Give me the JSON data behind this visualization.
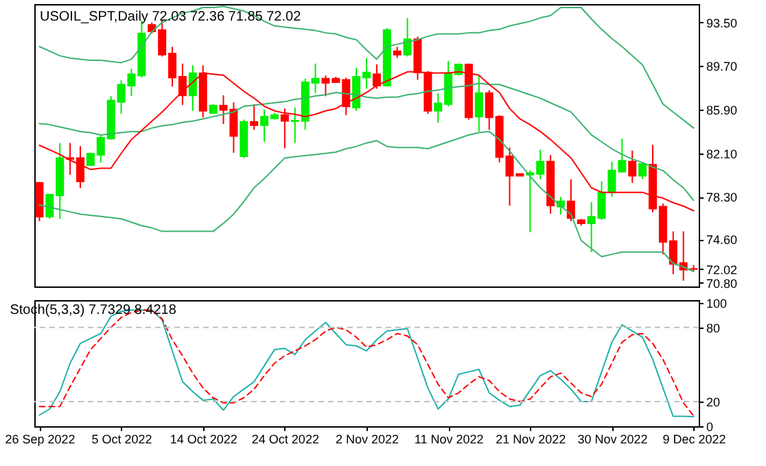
{
  "chart_data": [
    {
      "type": "candlestick",
      "title": "USOIL_SPT,Daily  72.03 72.36 71.85 72.02",
      "tick_labels": "y",
      "categories": [
        null,
        null,
        null,
        null,
        null,
        null,
        null,
        null,
        null,
        null,
        null,
        null,
        null,
        null,
        null,
        null,
        null,
        null,
        null,
        null,
        null,
        null,
        null,
        null,
        null,
        null,
        null,
        null,
        null,
        null,
        null,
        null,
        null,
        null,
        null,
        null,
        null,
        null,
        null,
        null,
        null,
        null,
        null,
        null,
        null,
        null,
        null,
        null,
        null,
        null,
        null,
        null,
        null,
        null,
        null,
        null,
        null,
        null,
        null,
        null,
        null,
        null,
        null,
        null,
        null
      ],
      "ylim": [
        70.5,
        95.1
      ],
      "yticks": [
        {
          "value": 70.8,
          "label": "70.80"
        },
        {
          "value": 72.02,
          "label": "72.02"
        },
        {
          "value": 74.6,
          "label": "74.60"
        },
        {
          "value": 78.3,
          "label": "78.30"
        },
        {
          "value": 82.1,
          "label": "82.10"
        },
        {
          "value": 85.9,
          "label": "85.90"
        },
        {
          "value": 89.7,
          "label": "89.70"
        },
        {
          "value": 93.5,
          "label": "93.50"
        }
      ],
      "ohlc": [
        [
          79.53,
          79.6,
          76.19,
          76.57
        ],
        [
          76.57,
          78.5,
          76.4,
          78.5
        ],
        [
          78.42,
          83.0,
          76.38,
          81.69
        ],
        [
          81.69,
          83.0,
          80.23,
          81.6
        ],
        [
          81.69,
          82.73,
          79.07,
          79.65
        ],
        [
          81.07,
          82.15,
          80.99,
          82.07
        ],
        [
          81.96,
          83.69,
          81.3,
          83.46
        ],
        [
          83.38,
          87.08,
          83.3,
          86.69
        ],
        [
          86.58,
          88.46,
          85.54,
          88.08
        ],
        [
          88.0,
          89.46,
          87.08,
          89.0
        ],
        [
          88.88,
          93.7,
          88.7,
          92.54
        ],
        [
          93.3,
          93.5,
          92.54,
          92.73
        ],
        [
          92.85,
          93.7,
          90.54,
          90.69
        ],
        [
          90.8,
          91.38,
          87.92,
          88.69
        ],
        [
          88.77,
          89.92,
          86.31,
          87.15
        ],
        [
          87.15,
          89.77,
          85.8,
          89.08
        ],
        [
          89.08,
          89.77,
          85.23,
          85.8
        ],
        [
          85.61,
          86.38,
          85.54,
          86.27
        ],
        [
          86.27,
          87.15,
          84.65,
          85.88
        ],
        [
          85.92,
          86.54,
          82.15,
          83.61
        ],
        [
          81.84,
          85.04,
          81.69,
          84.84
        ],
        [
          84.84,
          86.38,
          84.15,
          84.54
        ],
        [
          84.54,
          85.92,
          83.11,
          85.3
        ],
        [
          85.15,
          85.61,
          85.04,
          85.42
        ],
        [
          85.42,
          86.0,
          82.54,
          84.92
        ],
        [
          84.9,
          86.08,
          83.0,
          84.95
        ],
        [
          84.92,
          88.61,
          84.15,
          88.3
        ],
        [
          88.23,
          89.92,
          87.35,
          88.61
        ],
        [
          88.61,
          88.88,
          87.08,
          88.23
        ],
        [
          88.61,
          88.77,
          88.23,
          88.3
        ],
        [
          88.5,
          88.69,
          85.42,
          86.19
        ],
        [
          86.08,
          89.54,
          85.8,
          88.77
        ],
        [
          88.69,
          90.42,
          87.73,
          89.15
        ],
        [
          89.0,
          89.85,
          87.73,
          88.0
        ],
        [
          88.0,
          93.0,
          87.92,
          92.85
        ],
        [
          91.0,
          91.38,
          90.42,
          90.69
        ],
        [
          90.69,
          93.88,
          90.54,
          92.04
        ],
        [
          92.04,
          92.27,
          88.5,
          89.15
        ],
        [
          89.15,
          89.27,
          85.54,
          85.8
        ],
        [
          85.8,
          87.35,
          84.77,
          86.46
        ],
        [
          86.38,
          90.15,
          86.19,
          89.08
        ],
        [
          89.0,
          89.92,
          88.88,
          89.85
        ],
        [
          89.85,
          89.92,
          85.04,
          85.23
        ],
        [
          85.3,
          88.88,
          84.0,
          87.35
        ],
        [
          87.35,
          87.61,
          84.15,
          85.23
        ],
        [
          85.3,
          85.42,
          81.3,
          81.77
        ],
        [
          81.84,
          82.6,
          77.54,
          80.15
        ],
        [
          80.3,
          80.35,
          80.1,
          80.15
        ],
        [
          80.23,
          80.61,
          75.23,
          80.38
        ],
        [
          80.3,
          82.42,
          79.84,
          81.38
        ],
        [
          81.38,
          81.96,
          76.84,
          77.54
        ],
        [
          77.46,
          78.3,
          76.77,
          77.92
        ],
        [
          77.92,
          79.84,
          76.19,
          76.46
        ],
        [
          76.27,
          76.38,
          75.8,
          76.0
        ],
        [
          76.0,
          77.84,
          73.5,
          76.57
        ],
        [
          76.46,
          79.65,
          76.3,
          78.69
        ],
        [
          78.69,
          81.38,
          78.3,
          80.61
        ],
        [
          80.5,
          83.38,
          80.42,
          81.46
        ],
        [
          81.38,
          82.34,
          79.53,
          80.15
        ],
        [
          80.15,
          81.3,
          79.84,
          81.19
        ],
        [
          81.11,
          82.84,
          76.96,
          77.27
        ],
        [
          77.46,
          77.73,
          73.3,
          74.38
        ],
        [
          74.46,
          75.3,
          71.57,
          72.46
        ],
        [
          72.54,
          75.3,
          71.0,
          71.96
        ],
        [
          72.03,
          72.36,
          71.85,
          72.02
        ]
      ],
      "colors": [
        "#ff0000",
        "#00ee00",
        "#00ee00",
        "#ff0000",
        "#ff0000",
        "#00ee00",
        "#00ee00",
        "#00ee00",
        "#00ee00",
        "#00ee00",
        "#00ee00",
        "#ff0000",
        "#ff0000",
        "#ff0000",
        "#ff0000",
        "#00ee00",
        "#ff0000",
        "#00ee00",
        "#ff0000",
        "#ff0000",
        "#00ee00",
        "#ff0000",
        "#00ee00",
        "#00ee00",
        "#ff0000",
        "#00ee00",
        "#00ee00",
        "#00ee00",
        "#ff0000",
        "#ff0000",
        "#ff0000",
        "#00ee00",
        "#00ee00",
        "#ff0000",
        "#00ee00",
        "#ff0000",
        "#00ee00",
        "#ff0000",
        "#ff0000",
        "#00ee00",
        "#00ee00",
        "#00ee00",
        "#ff0000",
        "#00ee00",
        "#ff0000",
        "#ff0000",
        "#ff0000",
        "#ff0000",
        "#00ee00",
        "#00ee00",
        "#ff0000",
        "#00ee00",
        "#ff0000",
        "#ff0000",
        "#00ee00",
        "#00ee00",
        "#00ee00",
        "#00ee00",
        "#ff0000",
        "#00ee00",
        "#ff0000",
        "#ff0000",
        "#ff0000",
        "#ff0000",
        "#ff0000"
      ],
      "series": [
        {
          "type": "line",
          "color": "#3cb371",
          "values": [
            91.4,
            91.0,
            90.6,
            90.4,
            90.3,
            90.2,
            90.2,
            90.1,
            90.0,
            90.3,
            91.4,
            92.7,
            93.5,
            93.9,
            94.3,
            94.5,
            94.8,
            94.8,
            94.9,
            94.7,
            94.5,
            94.1,
            93.6,
            93.2,
            93.1,
            93.0,
            92.9,
            92.8,
            92.6,
            92.5,
            92.2,
            92.0,
            91.1,
            90.3,
            91.4,
            91.6,
            91.8,
            92.0,
            92.3,
            92.5,
            92.5,
            92.5,
            92.6,
            92.6,
            92.8,
            92.9,
            93.2,
            93.4,
            93.6,
            93.9,
            94.1,
            94.8,
            94.8,
            94.8,
            93.8,
            92.9,
            92.1,
            91.4,
            90.6,
            89.8,
            88.1,
            86.4,
            85.7,
            85.0,
            84.3
          ]
        },
        {
          "type": "line",
          "color": "#3cb371",
          "values": [
            84.7,
            84.6,
            84.4,
            84.2,
            84.0,
            83.9,
            83.7,
            83.8,
            83.9,
            84.0,
            84.0,
            84.3,
            84.5,
            84.6,
            84.8,
            84.9,
            85.1,
            85.3,
            85.5,
            85.7,
            86.2,
            86.3,
            86.4,
            86.5,
            86.6,
            86.8,
            86.9,
            87.1,
            87.2,
            87.4,
            87.3,
            87.2,
            87.0,
            86.9,
            87.0,
            87.0,
            87.2,
            87.3,
            87.5,
            87.6,
            87.8,
            87.9,
            88.0,
            88.2,
            88.1,
            88.1,
            87.8,
            87.5,
            87.2,
            86.9,
            86.5,
            86.1,
            85.7,
            84.7,
            83.7,
            83.1,
            82.5,
            82.0,
            81.6,
            81.3,
            80.9,
            80.6,
            79.8,
            79.1,
            78.0
          ]
        },
        {
          "type": "line",
          "color": "#3cb371",
          "values": [
            77.6,
            77.4,
            77.2,
            77.0,
            76.8,
            76.7,
            76.6,
            76.5,
            76.4,
            76.1,
            75.8,
            75.6,
            75.3,
            75.3,
            75.3,
            75.3,
            75.3,
            75.3,
            76.0,
            76.8,
            77.9,
            79.1,
            79.9,
            80.8,
            81.7,
            81.8,
            81.9,
            82.0,
            82.1,
            82.2,
            82.5,
            82.7,
            83.0,
            83.2,
            82.7,
            82.6,
            82.6,
            82.6,
            82.5,
            82.8,
            83.1,
            83.4,
            83.7,
            83.9,
            84.0,
            83.3,
            82.3,
            81.2,
            80.1,
            79.1,
            78.3,
            77.5,
            76.8,
            74.5,
            73.8,
            73.1,
            73.3,
            73.5,
            73.5,
            73.5,
            73.5,
            73.5,
            72.5,
            72.2,
            71.8
          ]
        },
        {
          "type": "line",
          "color": "#ff0000",
          "values": [
            82.8,
            82.4,
            82.0,
            81.5,
            81.1,
            80.7,
            80.8,
            80.8,
            82.1,
            83.3,
            84.1,
            84.9,
            85.7,
            86.6,
            87.5,
            88.3,
            89.1,
            89.0,
            88.9,
            88.2,
            87.5,
            86.9,
            86.2,
            85.8,
            85.6,
            85.5,
            85.3,
            85.5,
            85.8,
            86.0,
            86.5,
            86.9,
            87.4,
            88.0,
            88.4,
            88.8,
            89.2,
            89.2,
            89.1,
            89.1,
            89.1,
            89.2,
            89.1,
            88.9,
            88.1,
            87.4,
            86.0,
            85.1,
            84.6,
            84.0,
            83.3,
            82.5,
            81.7,
            80.4,
            79.1,
            78.7,
            78.7,
            78.7,
            78.7,
            78.7,
            78.4,
            78.2,
            77.8,
            77.5,
            77.1
          ]
        }
      ]
    },
    {
      "type": "line",
      "title": "Stoch(5,3,3) 7.7329 8.4218",
      "categories": [
        "26 Sep 2022",
        null,
        null,
        null,
        null,
        null,
        null,
        null,
        "5 Oct 2022",
        null,
        null,
        null,
        null,
        null,
        null,
        null,
        "14 Oct 2022",
        null,
        null,
        null,
        null,
        null,
        null,
        null,
        "24 Oct 2022",
        null,
        null,
        null,
        null,
        null,
        null,
        null,
        "2 Nov 2022",
        null,
        null,
        null,
        null,
        null,
        null,
        null,
        "11 Nov 2022",
        null,
        null,
        null,
        null,
        null,
        null,
        null,
        "21 Nov 2022",
        null,
        null,
        null,
        null,
        null,
        null,
        null,
        "30 Nov 2022",
        null,
        null,
        null,
        null,
        null,
        null,
        null,
        "9 Dec 2022"
      ],
      "ylim": [
        0,
        102
      ],
      "yticks": [
        0,
        20,
        80,
        100
      ],
      "ref_lines": [
        {
          "axis": "y",
          "value": 80,
          "color": "#c0c0c0",
          "line_style": "dashed"
        },
        {
          "axis": "y",
          "value": 20,
          "color": "#c0c0c0",
          "line_style": "dashed"
        }
      ],
      "series": [
        {
          "type": "line",
          "color": "#20b2aa",
          "values": [
            9,
            14,
            28,
            51,
            67,
            71,
            75,
            89,
            93,
            94,
            94,
            94,
            86,
            61,
            36,
            28,
            21,
            22,
            13,
            24,
            30,
            36,
            49,
            62,
            63,
            58,
            70,
            77,
            84,
            75,
            66,
            65,
            61,
            70,
            77,
            78,
            79,
            55,
            31,
            14,
            22,
            42,
            44,
            46,
            27,
            21,
            16,
            17,
            29,
            41,
            45,
            38,
            30,
            20,
            20,
            44,
            68,
            82,
            77,
            72,
            54,
            31,
            8,
            8,
            7.7329
          ]
        },
        {
          "type": "line",
          "color": "#ff0000",
          "line_style": "dashed",
          "values": [
            16,
            16,
            16,
            32,
            47,
            62,
            71,
            80,
            88,
            92,
            94,
            94,
            87,
            70,
            57,
            43,
            31,
            23,
            19,
            19,
            23,
            30,
            41,
            51,
            57,
            61,
            65,
            70,
            77,
            80,
            78,
            72,
            64,
            66,
            70,
            75,
            73,
            66,
            50,
            34,
            23,
            27,
            34,
            40,
            37,
            28,
            22,
            20,
            22,
            31,
            40,
            43,
            35,
            27,
            24,
            34,
            51,
            68,
            74,
            75,
            67,
            54,
            37,
            19,
            8.4218
          ]
        }
      ]
    }
  ]
}
